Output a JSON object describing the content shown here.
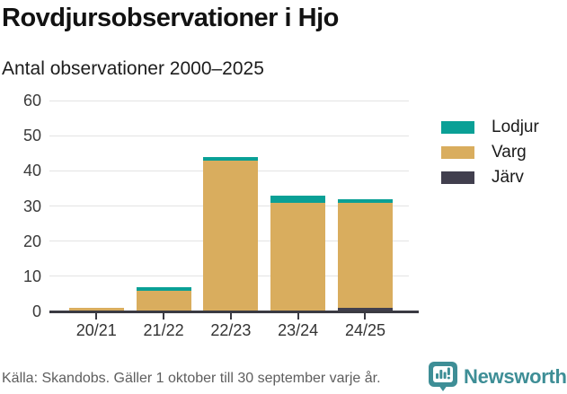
{
  "header": {
    "title": "Rovdjursobservationer i Hjo",
    "subtitle": "Antal observationer 2000–2025"
  },
  "chart_data": {
    "type": "bar",
    "stacked": true,
    "title": "Rovdjursobservationer i Hjo",
    "subtitle": "Antal observationer 2000–2025",
    "categories": [
      "20/21",
      "21/22",
      "22/23",
      "23/24",
      "24/25"
    ],
    "series": [
      {
        "name": "Järv",
        "color": "#413f4e",
        "values": [
          0,
          0,
          0,
          0,
          1
        ]
      },
      {
        "name": "Varg",
        "color": "#d9ad5e",
        "values": [
          1,
          6,
          43,
          31,
          30
        ]
      },
      {
        "name": "Lodjur",
        "color": "#0aa096",
        "values": [
          0,
          1,
          1,
          2,
          1
        ]
      }
    ],
    "totals": [
      1,
      7,
      44,
      33,
      32
    ],
    "stack_order_bottom_to_top": [
      "Järv",
      "Varg",
      "Lodjur"
    ],
    "legend": [
      {
        "label": "Lodjur",
        "color": "#0aa096"
      },
      {
        "label": "Varg",
        "color": "#d9ad5e"
      },
      {
        "label": "Järv",
        "color": "#413f4e"
      }
    ],
    "legend_position": "right",
    "xlabel": "",
    "ylabel": "",
    "ylim": [
      0,
      60
    ],
    "yticks": [
      0,
      10,
      20,
      30,
      40,
      50,
      60
    ],
    "grid": true,
    "grid_color": "#e3e3e3",
    "axis_color": "#3a3a42"
  },
  "footer": {
    "source": "Källa: Skandobs. Gäller 1 oktober till 30 september varje år.",
    "brand": "Newsworthy",
    "brand_color": "#3e8e96"
  }
}
